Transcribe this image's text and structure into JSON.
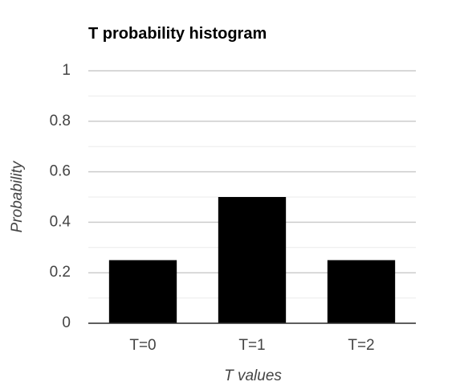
{
  "chart_data": {
    "type": "bar",
    "title": "T probability histogram",
    "x_label": "T values",
    "y_label": "Probability",
    "categories": [
      "T=0",
      "T=1",
      "T=2"
    ],
    "values": [
      0.25,
      0.5,
      0.25
    ],
    "color": "#000000",
    "ylim": [
      0,
      1
    ],
    "yticks": [
      0,
      0.2,
      0.4,
      0.6,
      0.8,
      1
    ],
    "minor_yticks": [
      0.1,
      0.3,
      0.5,
      0.7,
      0.9
    ],
    "grid": true
  }
}
